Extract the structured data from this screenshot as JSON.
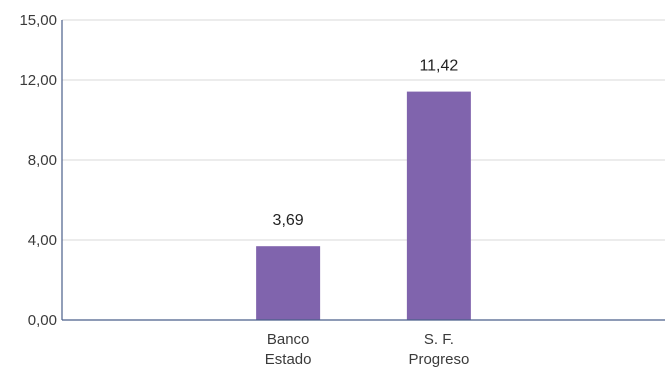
{
  "chart_data": {
    "type": "bar",
    "categories": [
      "Banco Estado",
      "S. F. Progreso"
    ],
    "category_lines": [
      [
        "Banco",
        "Estado"
      ],
      [
        "S. F.",
        "Progreso"
      ]
    ],
    "values": [
      3.69,
      11.42
    ],
    "data_labels": [
      "3,69",
      "11,42"
    ],
    "y_ticks": [
      0,
      4,
      8,
      12,
      15
    ],
    "y_tick_labels": [
      "0,00",
      "4,00",
      "8,00",
      "12,00",
      "15,00"
    ],
    "ylim": [
      0,
      15
    ],
    "grid": true,
    "legend": "none",
    "colors": {
      "bar": "#8064ad",
      "axis": "#4a5f8a",
      "grid": "#d9d9d9"
    }
  }
}
